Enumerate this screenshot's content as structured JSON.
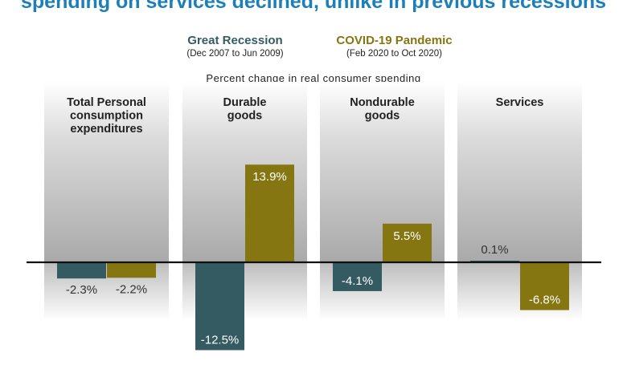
{
  "title": "spending on services declined, unlike in previous recessions",
  "subtitle": "Percent change in real consumer spending",
  "colors": {
    "great_recession": "#345a62",
    "covid": "#857611",
    "title": "#1d7fb7"
  },
  "legend": [
    {
      "name": "Great Recession",
      "period": "(Dec 2007 to Jun 2009)",
      "color": "#345a62"
    },
    {
      "name": "COVID-19 Pandemic",
      "period": "(Feb 2020 to Oct 2020)",
      "color": "#857611"
    }
  ],
  "chart_data": {
    "type": "bar",
    "title": "spending on services declined, unlike in previous recessions",
    "ylabel": "Percent change in real consumer spending",
    "categories": [
      "Total Personal consumption expenditures",
      "Durable goods",
      "Nondurable goods",
      "Services"
    ],
    "category_label_lines": [
      [
        "Total Personal",
        "consumption",
        "expenditures"
      ],
      [
        "Durable",
        "goods"
      ],
      [
        "Nondurable",
        "goods"
      ],
      [
        "Services"
      ]
    ],
    "series": [
      {
        "name": "Great Recession",
        "values": [
          -2.3,
          -12.5,
          -4.1,
          0.1
        ],
        "labels": [
          "-2.3%",
          "-12.5%",
          "-4.1%",
          "0.1%"
        ]
      },
      {
        "name": "COVID-19 Pandemic",
        "values": [
          -2.2,
          13.9,
          5.5,
          -6.8
        ],
        "labels": [
          "-2.2%",
          "13.9%",
          "5.5%",
          "-6.8%"
        ]
      }
    ],
    "ylim": [
      -14,
      17
    ],
    "legend_position": "top"
  }
}
